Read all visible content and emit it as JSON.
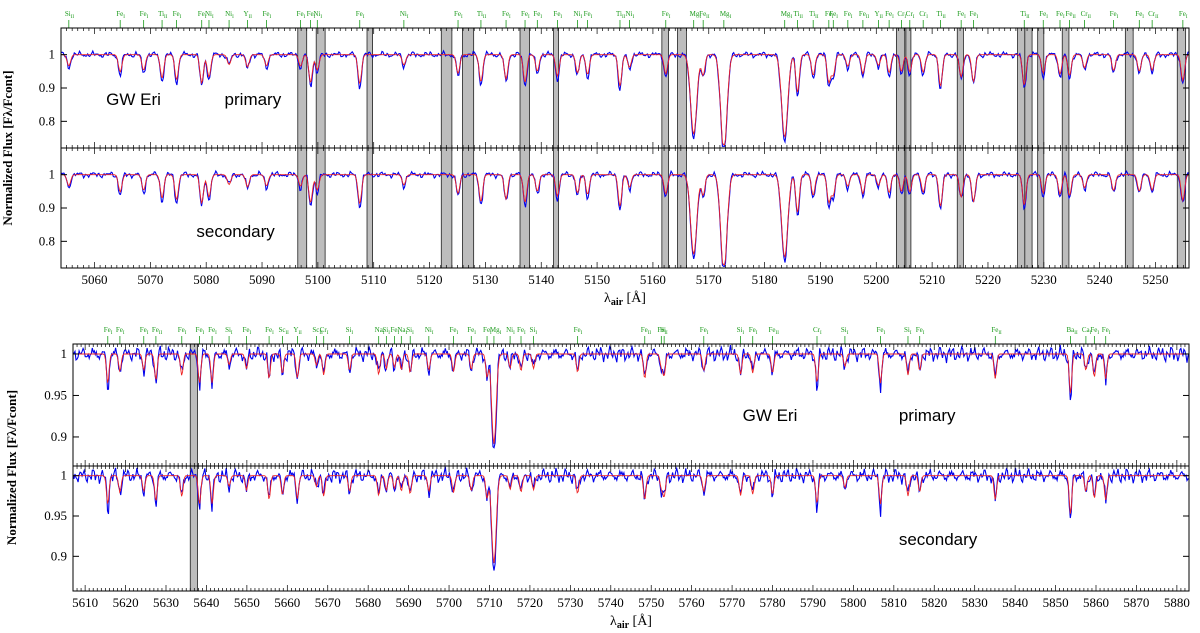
{
  "figure": {
    "ylabel": "Normalized Flux [Fλ/Fcont]",
    "xlabel": "λair [Å]"
  },
  "chart_data": [
    {
      "type": "line",
      "id": "top",
      "xlim": [
        5054,
        5256
      ],
      "xticks": [
        5060,
        5070,
        5080,
        5090,
        5100,
        5110,
        5120,
        5130,
        5140,
        5150,
        5160,
        5170,
        5180,
        5190,
        5200,
        5210,
        5220,
        5230,
        5240,
        5250
      ],
      "xlabel": "λair [Å]",
      "ylabel": "Normalized Flux [Fλ/Fcont]",
      "series_colors": {
        "observed": "#0000ee",
        "model": "#ee2222"
      },
      "panels": [
        {
          "id": "primary",
          "labels": [
            "GW Eri",
            "primary"
          ],
          "ylim": [
            0.72,
            1.08
          ],
          "yticks": [
            0.8,
            0.9,
            1.0
          ]
        },
        {
          "id": "secondary",
          "labels": [
            "secondary"
          ],
          "ylim": [
            0.72,
            1.08
          ],
          "yticks": [
            0.8,
            0.9,
            1.0
          ]
        }
      ],
      "line_ids": [
        {
          "x": 5055.4,
          "label": "Si II"
        },
        {
          "x": 5064.6,
          "label": "Fe I"
        },
        {
          "x": 5068.8,
          "label": "Fe I"
        },
        {
          "x": 5072.1,
          "label": "Ti II"
        },
        {
          "x": 5074.7,
          "label": "Fe I"
        },
        {
          "x": 5079.2,
          "label": "Fe I"
        },
        {
          "x": 5080.5,
          "label": "Ni I"
        },
        {
          "x": 5084.1,
          "label": "Ni I"
        },
        {
          "x": 5087.4,
          "label": "Y II"
        },
        {
          "x": 5090.8,
          "label": "Fe I"
        },
        {
          "x": 5096.9,
          "label": "Fe I"
        },
        {
          "x": 5098.7,
          "label": "Fe I"
        },
        {
          "x": 5099.9,
          "label": "Ni I"
        },
        {
          "x": 5107.5,
          "label": "Fe I"
        },
        {
          "x": 5115.4,
          "label": "Ni I"
        },
        {
          "x": 5125.1,
          "label": "Fe I"
        },
        {
          "x": 5129.2,
          "label": "Ti II"
        },
        {
          "x": 5133.7,
          "label": "Fe I"
        },
        {
          "x": 5137.1,
          "label": "Fe I"
        },
        {
          "x": 5139.3,
          "label": "Fe I"
        },
        {
          "x": 5142.9,
          "label": "Fe I"
        },
        {
          "x": 5146.5,
          "label": "Ni I"
        },
        {
          "x": 5148.3,
          "label": "Fe I"
        },
        {
          "x": 5154.1,
          "label": "Ti II"
        },
        {
          "x": 5155.8,
          "label": "Ni I"
        },
        {
          "x": 5162.3,
          "label": "Fe I"
        },
        {
          "x": 5167.3,
          "label": "Mg I"
        },
        {
          "x": 5169.0,
          "label": "Fe II"
        },
        {
          "x": 5172.7,
          "label": "Mg I"
        },
        {
          "x": 5183.6,
          "label": "Mg I"
        },
        {
          "x": 5185.9,
          "label": "Ti II"
        },
        {
          "x": 5188.7,
          "label": "Ti II"
        },
        {
          "x": 5191.5,
          "label": "Fe I"
        },
        {
          "x": 5192.3,
          "label": "Fe I"
        },
        {
          "x": 5194.9,
          "label": "Fe I"
        },
        {
          "x": 5197.6,
          "label": "Fe II"
        },
        {
          "x": 5200.4,
          "label": "Y II"
        },
        {
          "x": 5202.3,
          "label": "Fe I"
        },
        {
          "x": 5204.5,
          "label": "Cr I"
        },
        {
          "x": 5206.0,
          "label": "Cr I"
        },
        {
          "x": 5208.4,
          "label": "Cr I"
        },
        {
          "x": 5211.5,
          "label": "Ti II"
        },
        {
          "x": 5215.2,
          "label": "Fe I"
        },
        {
          "x": 5217.4,
          "label": "Fe I"
        },
        {
          "x": 5226.5,
          "label": "Ti II"
        },
        {
          "x": 5229.9,
          "label": "Fe I"
        },
        {
          "x": 5232.9,
          "label": "Fe I"
        },
        {
          "x": 5234.6,
          "label": "Fe II"
        },
        {
          "x": 5237.3,
          "label": "Cr II"
        },
        {
          "x": 5242.5,
          "label": "Fe I"
        },
        {
          "x": 5247.1,
          "label": "Fe I"
        },
        {
          "x": 5249.4,
          "label": "Cr II"
        },
        {
          "x": 5254.9,
          "label": "Fe I"
        }
      ],
      "masked_regions": [
        [
          5096.4,
          5098.0
        ],
        [
          5099.7,
          5101.3
        ],
        [
          5108.8,
          5109.8
        ],
        [
          5122.1,
          5124.0
        ],
        [
          5125.9,
          5127.9
        ],
        [
          5136.2,
          5137.9
        ],
        [
          5142.2,
          5143.1
        ],
        [
          5161.6,
          5162.8
        ],
        [
          5164.4,
          5166.0
        ],
        [
          5203.6,
          5205.1
        ],
        [
          5205.3,
          5206.2
        ],
        [
          5214.5,
          5215.6
        ],
        [
          5225.3,
          5226.6
        ],
        [
          5226.6,
          5227.9
        ],
        [
          5228.9,
          5230.0
        ],
        [
          5233.3,
          5234.5
        ],
        [
          5244.6,
          5246.0
        ],
        [
          5253.9,
          5255.4
        ]
      ]
    },
    {
      "type": "line",
      "id": "bottom",
      "xlim": [
        5607,
        5883
      ],
      "xticks": [
        5610,
        5620,
        5630,
        5640,
        5650,
        5660,
        5670,
        5680,
        5690,
        5700,
        5710,
        5720,
        5730,
        5740,
        5750,
        5760,
        5770,
        5780,
        5790,
        5800,
        5810,
        5820,
        5830,
        5840,
        5850,
        5860,
        5870,
        5880
      ],
      "xlabel": "λair [Å]",
      "ylabel": "Normalized Flux [Fλ/Fcont]",
      "series_colors": {
        "observed": "#0000ee",
        "model": "#ee2222"
      },
      "panels": [
        {
          "id": "primary",
          "labels": [
            "GW Eri",
            "primary"
          ],
          "ylim": [
            0.865,
            1.012
          ],
          "yticks": [
            0.9,
            0.95,
            1.0
          ]
        },
        {
          "id": "secondary",
          "labels": [
            "secondary"
          ],
          "ylim": [
            0.857,
            1.012
          ],
          "yticks": [
            0.9,
            0.95,
            1.0
          ]
        }
      ],
      "line_ids": [
        {
          "x": 5615.6,
          "label": "Fe I"
        },
        {
          "x": 5618.6,
          "label": "Fe I"
        },
        {
          "x": 5624.5,
          "label": "Fe I"
        },
        {
          "x": 5627.5,
          "label": "Fe II"
        },
        {
          "x": 5633.9,
          "label": "Fe I"
        },
        {
          "x": 5638.3,
          "label": "Fe I"
        },
        {
          "x": 5641.4,
          "label": "Fe I"
        },
        {
          "x": 5645.6,
          "label": "Si I"
        },
        {
          "x": 5649.9,
          "label": "Fe I"
        },
        {
          "x": 5655.5,
          "label": "Fe I"
        },
        {
          "x": 5658.8,
          "label": "Sc II"
        },
        {
          "x": 5662.5,
          "label": "Y II"
        },
        {
          "x": 5667.2,
          "label": "Sc II"
        },
        {
          "x": 5669.0,
          "label": "Cr I"
        },
        {
          "x": 5675.4,
          "label": "Si I"
        },
        {
          "x": 5682.6,
          "label": "Na I"
        },
        {
          "x": 5684.5,
          "label": "Si I"
        },
        {
          "x": 5686.5,
          "label": "Fe I"
        },
        {
          "x": 5688.2,
          "label": "Na I"
        },
        {
          "x": 5690.4,
          "label": "Si I"
        },
        {
          "x": 5695.0,
          "label": "Ni I"
        },
        {
          "x": 5701.1,
          "label": "Fe I"
        },
        {
          "x": 5705.5,
          "label": "Fe I"
        },
        {
          "x": 5709.4,
          "label": "Fe I"
        },
        {
          "x": 5711.1,
          "label": "Mg I"
        },
        {
          "x": 5715.1,
          "label": "Ni I"
        },
        {
          "x": 5717.8,
          "label": "Fe I"
        },
        {
          "x": 5720.9,
          "label": "Si I"
        },
        {
          "x": 5731.8,
          "label": "Fe I"
        },
        {
          "x": 5748.4,
          "label": "Fe II"
        },
        {
          "x": 5752.5,
          "label": "Fe I"
        },
        {
          "x": 5753.2,
          "label": "Si I"
        },
        {
          "x": 5763.0,
          "label": "Fe I"
        },
        {
          "x": 5772.1,
          "label": "Si I"
        },
        {
          "x": 5775.1,
          "label": "Fe I"
        },
        {
          "x": 5780.0,
          "label": "Fe II"
        },
        {
          "x": 5791.0,
          "label": "Cr I"
        },
        {
          "x": 5797.9,
          "label": "Si I"
        },
        {
          "x": 5806.7,
          "label": "Fe I"
        },
        {
          "x": 5813.5,
          "label": "Si I"
        },
        {
          "x": 5816.4,
          "label": "Fe I"
        },
        {
          "x": 5835.1,
          "label": "Fe II"
        },
        {
          "x": 5853.7,
          "label": "Ba II"
        },
        {
          "x": 5857.5,
          "label": "Ca I"
        },
        {
          "x": 5859.6,
          "label": "Fe I"
        },
        {
          "x": 5862.4,
          "label": "Fe I"
        }
      ],
      "masked_regions": [
        [
          5636.0,
          5637.8
        ]
      ]
    }
  ]
}
